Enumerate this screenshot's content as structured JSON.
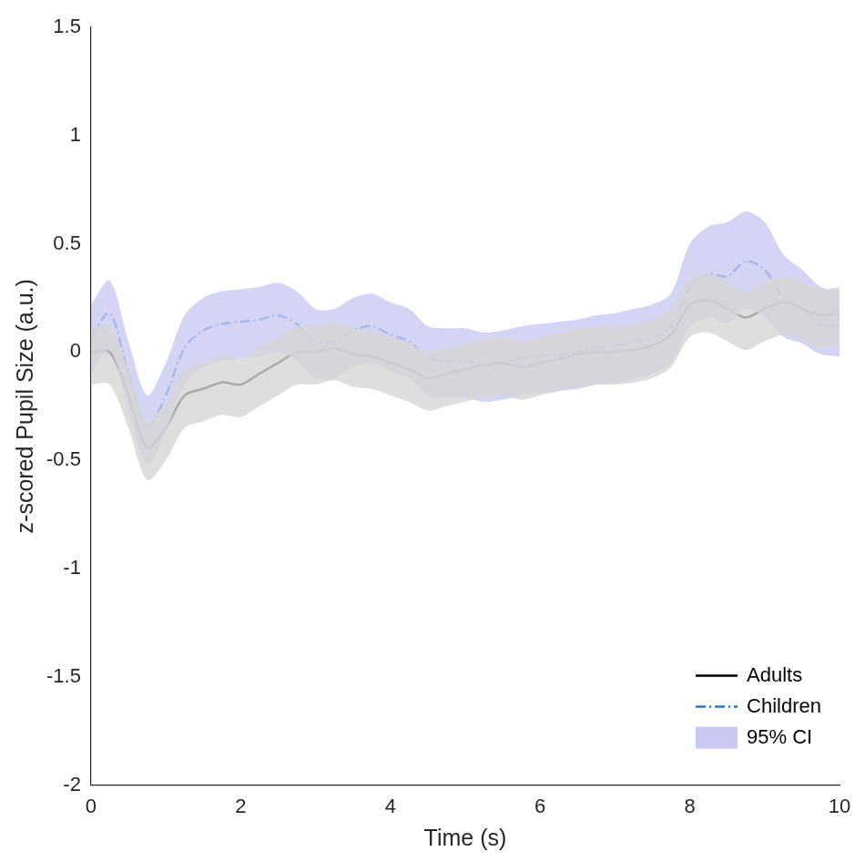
{
  "chart_data": {
    "type": "line",
    "x_label": "Time (s)",
    "y_label": "z-scored Pupil Size (a.u.)",
    "x": [
      0,
      0.25,
      0.5,
      0.75,
      1,
      1.25,
      1.5,
      1.75,
      2,
      2.25,
      2.5,
      2.75,
      3,
      3.25,
      3.5,
      3.75,
      4,
      4.25,
      4.5,
      4.75,
      5,
      5.25,
      5.5,
      5.75,
      6,
      6.25,
      6.5,
      6.75,
      7,
      7.25,
      7.5,
      7.75,
      8,
      8.25,
      8.5,
      8.75,
      9,
      9.25,
      9.5,
      9.75,
      10
    ],
    "xlim": [
      0,
      10
    ],
    "xticks": [
      0,
      2,
      4,
      6,
      8,
      10
    ],
    "ylim": [
      -2,
      1.5
    ],
    "yticks": [
      -2,
      -1.5,
      -1,
      -0.5,
      0,
      0.5,
      1,
      1.5
    ],
    "grid": false,
    "legend": "bottom right",
    "bands": [
      {
        "name": "95% CI",
        "of": "Adults",
        "color": "#d6d6d6",
        "lower": [
          -0.15,
          -0.15,
          -0.35,
          -0.59,
          -0.5,
          -0.35,
          -0.32,
          -0.29,
          -0.3,
          -0.25,
          -0.2,
          -0.15,
          -0.15,
          -0.13,
          -0.16,
          -0.17,
          -0.2,
          -0.23,
          -0.27,
          -0.25,
          -0.23,
          -0.21,
          -0.2,
          -0.22,
          -0.2,
          -0.18,
          -0.16,
          -0.15,
          -0.15,
          -0.14,
          -0.12,
          -0.07,
          0.07,
          0.09,
          0.05,
          0.01,
          0.05,
          0.08,
          0.05,
          0.02,
          0.03
        ],
        "upper": [
          0.12,
          0.12,
          -0.08,
          -0.32,
          -0.23,
          -0.08,
          -0.05,
          -0.02,
          -0.03,
          0.02,
          0.07,
          0.12,
          0.12,
          0.14,
          0.11,
          0.1,
          0.07,
          0.04,
          0,
          0.02,
          0.04,
          0.06,
          0.07,
          0.05,
          0.07,
          0.09,
          0.11,
          0.12,
          0.12,
          0.13,
          0.15,
          0.2,
          0.34,
          0.36,
          0.32,
          0.28,
          0.32,
          0.35,
          0.32,
          0.29,
          0.3
        ]
      },
      {
        "name": "95% CI",
        "of": "Children",
        "color": "#c9c9f3",
        "lower": [
          -0.1,
          0.01,
          -0.27,
          -0.52,
          -0.37,
          -0.15,
          -0.07,
          -0.04,
          -0.03,
          -0.02,
          0,
          -0.04,
          -0.12,
          -0.12,
          -0.07,
          -0.05,
          -0.09,
          -0.12,
          -0.2,
          -0.21,
          -0.21,
          -0.23,
          -0.22,
          -0.2,
          -0.19,
          -0.18,
          -0.17,
          -0.15,
          -0.14,
          -0.12,
          -0.1,
          -0.05,
          0.12,
          0.16,
          0.13,
          0.2,
          0.16,
          0.07,
          0.04,
          -0.01,
          -0.02
        ],
        "upper": [
          0.22,
          0.33,
          0.05,
          -0.2,
          -0.05,
          0.17,
          0.25,
          0.28,
          0.29,
          0.3,
          0.32,
          0.28,
          0.2,
          0.2,
          0.25,
          0.27,
          0.23,
          0.2,
          0.12,
          0.11,
          0.11,
          0.09,
          0.1,
          0.12,
          0.13,
          0.14,
          0.15,
          0.17,
          0.18,
          0.2,
          0.22,
          0.27,
          0.5,
          0.58,
          0.6,
          0.65,
          0.6,
          0.45,
          0.38,
          0.3,
          0.28
        ]
      }
    ],
    "series": [
      {
        "name": "Adults",
        "color": "#000000",
        "line_style": "solid",
        "values": [
          0,
          0,
          -0.2,
          -0.44,
          -0.35,
          -0.2,
          -0.17,
          -0.14,
          -0.15,
          -0.1,
          -0.05,
          0,
          0,
          0.02,
          -0.01,
          -0.02,
          -0.05,
          -0.08,
          -0.12,
          -0.1,
          -0.08,
          -0.06,
          -0.05,
          -0.07,
          -0.05,
          -0.03,
          -0.01,
          0,
          0,
          0.01,
          0.03,
          0.08,
          0.22,
          0.24,
          0.2,
          0.16,
          0.2,
          0.23,
          0.2,
          0.17,
          0.18
        ]
      },
      {
        "name": "Children",
        "color": "#1f77c4",
        "line_style": "dashdot",
        "values": [
          0.07,
          0.18,
          -0.1,
          -0.35,
          -0.2,
          0.02,
          0.1,
          0.13,
          0.14,
          0.15,
          0.17,
          0.13,
          0.05,
          0.05,
          0.1,
          0.12,
          0.08,
          0.05,
          -0.03,
          -0.04,
          -0.04,
          -0.06,
          -0.05,
          -0.03,
          -0.02,
          -0.01,
          0,
          0.02,
          0.03,
          0.05,
          0.07,
          0.12,
          0.3,
          0.36,
          0.35,
          0.42,
          0.38,
          0.25,
          0.2,
          0.13,
          0.12
        ]
      }
    ]
  }
}
